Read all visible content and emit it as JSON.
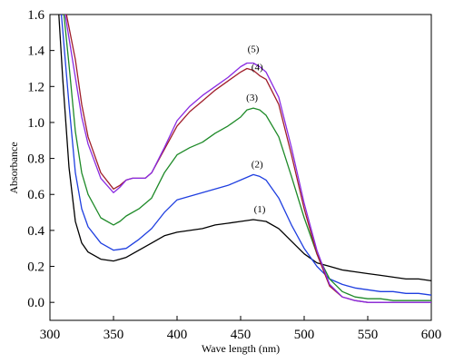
{
  "chart_data": {
    "type": "line",
    "title": "",
    "xlabel": "Wave length (nm)",
    "ylabel": "Absorbance",
    "xlim": [
      300,
      600
    ],
    "ylim": [
      -0.1,
      1.6
    ],
    "xticks": [
      300,
      350,
      400,
      450,
      500,
      550,
      600
    ],
    "yticks": [
      0.0,
      0.2,
      0.4,
      0.6,
      0.8,
      1.0,
      1.2,
      1.4,
      1.6
    ],
    "grid": false,
    "legend": "none",
    "series": [
      {
        "color": "#000000",
        "x": [
          307,
          310,
          315,
          320,
          325,
          330,
          340,
          350,
          360,
          370,
          380,
          390,
          400,
          410,
          420,
          430,
          440,
          450,
          460,
          470,
          480,
          490,
          500,
          510,
          520,
          530,
          540,
          550,
          560,
          570,
          580,
          590,
          600
        ],
        "y": [
          1.6,
          1.25,
          0.75,
          0.45,
          0.33,
          0.28,
          0.24,
          0.23,
          0.25,
          0.29,
          0.33,
          0.37,
          0.39,
          0.4,
          0.41,
          0.43,
          0.44,
          0.45,
          0.46,
          0.45,
          0.41,
          0.34,
          0.27,
          0.22,
          0.2,
          0.18,
          0.17,
          0.16,
          0.15,
          0.14,
          0.13,
          0.13,
          0.12
        ]
      },
      {
        "color": "#1f3fe0",
        "x": [
          309,
          315,
          320,
          325,
          330,
          340,
          350,
          360,
          370,
          380,
          390,
          400,
          410,
          420,
          430,
          440,
          450,
          460,
          465,
          470,
          480,
          490,
          500,
          510,
          520,
          530,
          540,
          550,
          560,
          570,
          580,
          590,
          600
        ],
        "y": [
          1.6,
          1.1,
          0.72,
          0.52,
          0.42,
          0.33,
          0.29,
          0.3,
          0.35,
          0.41,
          0.5,
          0.57,
          0.59,
          0.61,
          0.63,
          0.65,
          0.68,
          0.71,
          0.7,
          0.68,
          0.58,
          0.43,
          0.3,
          0.2,
          0.13,
          0.1,
          0.08,
          0.07,
          0.06,
          0.06,
          0.05,
          0.05,
          0.04
        ]
      },
      {
        "color": "#1e8a28",
        "x": [
          311,
          315,
          320,
          325,
          330,
          340,
          350,
          355,
          360,
          370,
          380,
          390,
          400,
          410,
          420,
          430,
          440,
          450,
          455,
          460,
          465,
          470,
          480,
          490,
          500,
          510,
          520,
          530,
          540,
          550,
          560,
          570,
          580,
          590,
          600
        ],
        "y": [
          1.6,
          1.32,
          0.95,
          0.72,
          0.6,
          0.47,
          0.43,
          0.45,
          0.48,
          0.52,
          0.58,
          0.72,
          0.82,
          0.86,
          0.89,
          0.94,
          0.98,
          1.03,
          1.07,
          1.08,
          1.07,
          1.04,
          0.92,
          0.7,
          0.47,
          0.27,
          0.13,
          0.06,
          0.03,
          0.02,
          0.02,
          0.01,
          0.01,
          0.01,
          0.01
        ]
      },
      {
        "color": "#a01e2a",
        "x": [
          313,
          320,
          325,
          330,
          340,
          350,
          355,
          360,
          365,
          370,
          375,
          380,
          390,
          400,
          410,
          420,
          430,
          440,
          450,
          455,
          460,
          465,
          470,
          480,
          490,
          500,
          510,
          520,
          530,
          540,
          550,
          560,
          570,
          580,
          590,
          600
        ],
        "y": [
          1.6,
          1.35,
          1.1,
          0.92,
          0.72,
          0.63,
          0.65,
          0.68,
          0.69,
          0.69,
          0.69,
          0.72,
          0.85,
          0.98,
          1.06,
          1.12,
          1.18,
          1.23,
          1.28,
          1.3,
          1.29,
          1.26,
          1.24,
          1.1,
          0.82,
          0.52,
          0.27,
          0.09,
          0.03,
          0.01,
          0.0,
          0.0,
          0.0,
          0.0,
          0.0,
          0.0
        ]
      },
      {
        "color": "#8a2be2",
        "x": [
          312,
          320,
          325,
          330,
          340,
          350,
          355,
          360,
          365,
          370,
          375,
          380,
          390,
          400,
          410,
          420,
          430,
          440,
          450,
          455,
          460,
          465,
          470,
          480,
          490,
          500,
          510,
          520,
          530,
          540,
          550,
          560,
          570,
          580,
          590,
          600
        ],
        "y": [
          1.6,
          1.25,
          1.03,
          0.88,
          0.69,
          0.61,
          0.64,
          0.68,
          0.69,
          0.69,
          0.69,
          0.72,
          0.86,
          1.01,
          1.09,
          1.15,
          1.2,
          1.25,
          1.31,
          1.33,
          1.33,
          1.31,
          1.28,
          1.14,
          0.86,
          0.55,
          0.29,
          0.1,
          0.03,
          0.01,
          0.0,
          0.0,
          0.0,
          0.0,
          0.0,
          0.0
        ]
      }
    ],
    "annotations": [
      {
        "text": "(1)",
        "x": 465,
        "y": 0.5
      },
      {
        "text": "(2)",
        "x": 463,
        "y": 0.75
      },
      {
        "text": "(3)",
        "x": 459,
        "y": 1.12
      },
      {
        "text": "(4)",
        "x": 463,
        "y": 1.29
      },
      {
        "text": "(5)",
        "x": 460,
        "y": 1.39
      }
    ]
  }
}
